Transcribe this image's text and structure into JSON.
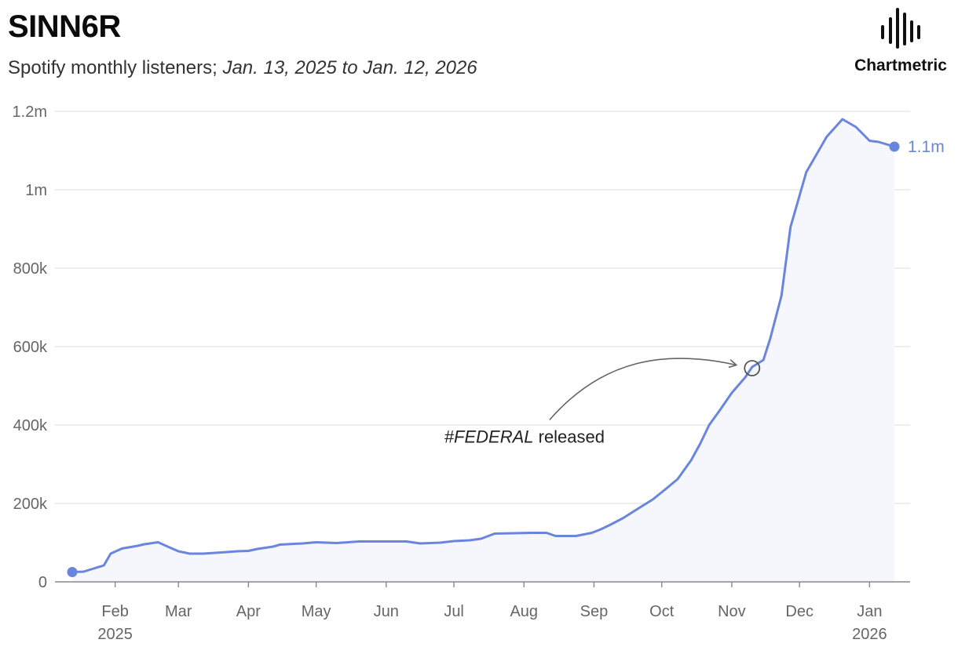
{
  "header": {
    "artist": "SINN6R",
    "subtitle_prefix": "Spotify monthly listeners; ",
    "subtitle_range": "Jan. 13, 2025 to Jan. 12, 2026"
  },
  "brand": {
    "name": "Chartmetric"
  },
  "colors": {
    "line": "#6a86dc",
    "fill": "#f5f7fc",
    "grid": "#e3e3e3",
    "axis": "#888888"
  },
  "chart_data": {
    "type": "area",
    "x_axis": {
      "range": [
        "2025-01-13",
        "2026-01-12"
      ],
      "ticks": [
        {
          "date": "2025-02-01",
          "label": "Feb",
          "year": "2025"
        },
        {
          "date": "2025-03-01",
          "label": "Mar"
        },
        {
          "date": "2025-04-01",
          "label": "Apr"
        },
        {
          "date": "2025-05-01",
          "label": "May"
        },
        {
          "date": "2025-06-01",
          "label": "Jun"
        },
        {
          "date": "2025-07-01",
          "label": "Jul"
        },
        {
          "date": "2025-08-01",
          "label": "Aug"
        },
        {
          "date": "2025-09-01",
          "label": "Sep"
        },
        {
          "date": "2025-10-01",
          "label": "Oct"
        },
        {
          "date": "2025-11-01",
          "label": "Nov"
        },
        {
          "date": "2025-12-01",
          "label": "Dec"
        },
        {
          "date": "2026-01-01",
          "label": "Jan",
          "year": "2026"
        }
      ]
    },
    "y_axis": {
      "range": [
        0,
        1200000
      ],
      "ticks": [
        {
          "value": 0,
          "label": "0"
        },
        {
          "value": 200000,
          "label": "200k"
        },
        {
          "value": 400000,
          "label": "400k"
        },
        {
          "value": 600000,
          "label": "600k"
        },
        {
          "value": 800000,
          "label": "800k"
        },
        {
          "value": 1000000,
          "label": "1m"
        },
        {
          "value": 1200000,
          "label": "1.2m"
        }
      ]
    },
    "grid": true,
    "series": [
      {
        "points": [
          [
            "2025-01-13",
            25000
          ],
          [
            "2025-01-18",
            26000
          ],
          [
            "2025-01-27",
            42000
          ],
          [
            "2025-01-30",
            72000
          ],
          [
            "2025-02-04",
            85000
          ],
          [
            "2025-02-11",
            92000
          ],
          [
            "2025-02-14",
            96000
          ],
          [
            "2025-02-20",
            101000
          ],
          [
            "2025-02-25",
            88000
          ],
          [
            "2025-03-01",
            78000
          ],
          [
            "2025-03-06",
            72000
          ],
          [
            "2025-03-12",
            72000
          ],
          [
            "2025-03-20",
            75000
          ],
          [
            "2025-03-27",
            78000
          ],
          [
            "2025-04-01",
            79000
          ],
          [
            "2025-04-05",
            84000
          ],
          [
            "2025-04-12",
            90000
          ],
          [
            "2025-04-15",
            95000
          ],
          [
            "2025-04-25",
            98000
          ],
          [
            "2025-05-01",
            101000
          ],
          [
            "2025-05-10",
            99000
          ],
          [
            "2025-05-20",
            103000
          ],
          [
            "2025-06-01",
            103000
          ],
          [
            "2025-06-10",
            103000
          ],
          [
            "2025-06-16",
            98000
          ],
          [
            "2025-06-25",
            100000
          ],
          [
            "2025-07-01",
            104000
          ],
          [
            "2025-07-08",
            106000
          ],
          [
            "2025-07-13",
            110000
          ],
          [
            "2025-07-19",
            123000
          ],
          [
            "2025-07-27",
            124000
          ],
          [
            "2025-08-04",
            125000
          ],
          [
            "2025-08-11",
            125000
          ],
          [
            "2025-08-15",
            117000
          ],
          [
            "2025-08-24",
            117000
          ],
          [
            "2025-08-31",
            125000
          ],
          [
            "2025-09-04",
            134000
          ],
          [
            "2025-09-08",
            145000
          ],
          [
            "2025-09-14",
            163000
          ],
          [
            "2025-09-20",
            185000
          ],
          [
            "2025-09-27",
            210000
          ],
          [
            "2025-10-03",
            238000
          ],
          [
            "2025-10-08",
            262000
          ],
          [
            "2025-10-14",
            310000
          ],
          [
            "2025-10-18",
            352000
          ],
          [
            "2025-10-22",
            400000
          ],
          [
            "2025-10-27",
            440000
          ],
          [
            "2025-11-01",
            482000
          ],
          [
            "2025-11-07",
            522000
          ],
          [
            "2025-11-10",
            548000
          ],
          [
            "2025-11-15",
            566000
          ],
          [
            "2025-11-18",
            620000
          ],
          [
            "2025-11-23",
            730000
          ],
          [
            "2025-11-27",
            905000
          ],
          [
            "2025-12-04",
            1045000
          ],
          [
            "2025-12-10",
            1105000
          ],
          [
            "2025-12-13",
            1135000
          ],
          [
            "2025-12-20",
            1180000
          ],
          [
            "2025-12-26",
            1160000
          ],
          [
            "2026-01-01",
            1125000
          ],
          [
            "2026-01-05",
            1122000
          ],
          [
            "2026-01-12",
            1110000
          ]
        ]
      }
    ],
    "end_label": "1.1m",
    "annotation": {
      "date": "2025-11-10",
      "value": 545000,
      "tag": "#FEDERAL",
      "text": " released"
    }
  }
}
